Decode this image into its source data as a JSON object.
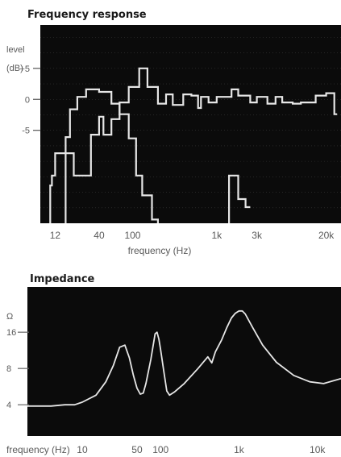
{
  "chart_data": [
    {
      "type": "line",
      "title": "Frequency response",
      "ylabel": "level\n(dB)",
      "ylabel_line1": "level",
      "ylabel_line2": "(dB)",
      "xlabel": "frequency (Hz)",
      "x_scale": "log",
      "xlim": [
        8,
        30000
      ],
      "ylim": [
        -20,
        12
      ],
      "yticks": [
        {
          "value": 5,
          "label": "+5"
        },
        {
          "value": 0,
          "label": "0"
        },
        {
          "value": -5,
          "label": "-5"
        }
      ],
      "xticks": [
        {
          "value": 12,
          "label": "12"
        },
        {
          "value": 40,
          "label": "40"
        },
        {
          "value": 100,
          "label": "100"
        },
        {
          "value": 1000,
          "label": "1k"
        },
        {
          "value": 3000,
          "label": "3k"
        },
        {
          "value": 20000,
          "label": "20k"
        }
      ],
      "grid": true,
      "series": [
        {
          "step": true,
          "color": "#e6e6e6",
          "points": [
            [
              10.5,
              -20
            ],
            [
              10.5,
              -13.9
            ],
            [
              11,
              -13.9
            ],
            [
              11,
              -12.3
            ],
            [
              12,
              -12.3
            ],
            [
              12,
              -8.7
            ],
            [
              16,
              -8.7
            ],
            [
              16,
              -6.1
            ],
            [
              18,
              -6.1
            ],
            [
              18,
              -1.6
            ],
            [
              22,
              -1.6
            ],
            [
              22,
              0.4
            ],
            [
              28,
              0.4
            ],
            [
              28,
              1.6
            ],
            [
              40,
              1.6
            ],
            [
              40,
              1.2
            ],
            [
              56,
              1.2
            ],
            [
              56,
              -0.7
            ],
            [
              70,
              -0.7
            ],
            [
              70,
              -2.4
            ],
            [
              90,
              -2.4
            ],
            [
              90,
              -6.3
            ],
            [
              110,
              -6.3
            ],
            [
              110,
              -12.3
            ],
            [
              130,
              -12.3
            ],
            [
              130,
              -15.5
            ],
            [
              170,
              -15.5
            ],
            [
              170,
              -19.4
            ],
            [
              200,
              -19.4
            ],
            [
              200,
              -20
            ]
          ]
        },
        {
          "step": true,
          "color": "#e6e6e6",
          "points": [
            [
              16,
              -20
            ],
            [
              16,
              -8.7
            ],
            [
              20,
              -8.7
            ],
            [
              20,
              -12.3
            ],
            [
              32,
              -12.3
            ],
            [
              32,
              -5.7
            ],
            [
              40,
              -5.7
            ],
            [
              40,
              -2.8
            ],
            [
              45,
              -2.8
            ],
            [
              45,
              -5.7
            ],
            [
              56,
              -5.7
            ],
            [
              56,
              -3.2
            ],
            [
              70,
              -3.2
            ],
            [
              70,
              -0.5
            ],
            [
              90,
              -0.5
            ],
            [
              90,
              2.0
            ],
            [
              120,
              2.0
            ],
            [
              120,
              5.0
            ],
            [
              150,
              5.0
            ],
            [
              150,
              2.0
            ],
            [
              200,
              2.0
            ],
            [
              200,
              -0.7
            ],
            [
              250,
              -0.7
            ],
            [
              250,
              0.8
            ],
            [
              300,
              0.8
            ],
            [
              300,
              -0.9
            ],
            [
              400,
              -0.9
            ],
            [
              400,
              0.8
            ],
            [
              500,
              0.8
            ],
            [
              500,
              0.6
            ],
            [
              600,
              0.6
            ],
            [
              600,
              -1.4
            ],
            [
              650,
              -1.4
            ],
            [
              650,
              0.4
            ],
            [
              800,
              0.4
            ],
            [
              800,
              -0.5
            ],
            [
              1000,
              -0.5
            ],
            [
              1000,
              0.4
            ],
            [
              1500,
              0.4
            ],
            [
              1500,
              1.6
            ],
            [
              1800,
              1.6
            ],
            [
              1800,
              0.6
            ],
            [
              2500,
              0.6
            ],
            [
              2500,
              -0.5
            ],
            [
              3000,
              -0.5
            ],
            [
              3000,
              0.4
            ],
            [
              4000,
              0.4
            ],
            [
              4000,
              -0.7
            ],
            [
              5000,
              -0.7
            ],
            [
              5000,
              0.4
            ],
            [
              6000,
              0.4
            ],
            [
              6000,
              -0.5
            ],
            [
              8000,
              -0.5
            ],
            [
              8000,
              -0.7
            ],
            [
              10000,
              -0.7
            ],
            [
              10000,
              -0.5
            ],
            [
              15000,
              -0.5
            ],
            [
              15000,
              0.6
            ],
            [
              20000,
              0.6
            ],
            [
              20000,
              1.0
            ],
            [
              25000,
              1.0
            ],
            [
              25000,
              -2.4
            ],
            [
              27000,
              -2.4
            ]
          ]
        },
        {
          "step": true,
          "color": "#e6e6e6",
          "points": [
            [
              1400,
              -20
            ],
            [
              1400,
              -12.3
            ],
            [
              1800,
              -12.3
            ],
            [
              1800,
              -16.1
            ],
            [
              2200,
              -16.1
            ],
            [
              2200,
              -17.4
            ],
            [
              2500,
              -17.4
            ]
          ]
        }
      ]
    },
    {
      "type": "line",
      "title": "Impedance",
      "ylabel": "Ω",
      "xlabel": "frequency (Hz)",
      "x_scale": "log",
      "xlim": [
        2,
        20000
      ],
      "y_scale": "log",
      "ylim": [
        2.2,
        38
      ],
      "yticks": [
        {
          "value": 16,
          "label": "16"
        },
        {
          "value": 8,
          "label": "8"
        },
        {
          "value": 4,
          "label": "4"
        }
      ],
      "xticks": [
        {
          "value": 10,
          "label": "10"
        },
        {
          "value": 50,
          "label": "50"
        },
        {
          "value": 100,
          "label": "100"
        },
        {
          "value": 1000,
          "label": "1k"
        },
        {
          "value": 10000,
          "label": "10k"
        }
      ],
      "grid": false,
      "series": [
        {
          "color": "#e6e6e6",
          "points": [
            [
              2,
              3.9
            ],
            [
              4,
              3.9
            ],
            [
              6,
              4.0
            ],
            [
              8,
              4.0
            ],
            [
              10,
              4.2
            ],
            [
              15,
              4.8
            ],
            [
              20,
              6.2
            ],
            [
              25,
              8.5
            ],
            [
              30,
              12.0
            ],
            [
              35,
              12.5
            ],
            [
              40,
              9.8
            ],
            [
              45,
              7.0
            ],
            [
              50,
              5.5
            ],
            [
              55,
              4.9
            ],
            [
              60,
              5.0
            ],
            [
              65,
              6.0
            ],
            [
              75,
              9.5
            ],
            [
              85,
              15.5
            ],
            [
              90,
              16.0
            ],
            [
              95,
              14.0
            ],
            [
              100,
              11.5
            ],
            [
              110,
              7.5
            ],
            [
              120,
              5.2
            ],
            [
              130,
              4.8
            ],
            [
              150,
              5.1
            ],
            [
              200,
              6.0
            ],
            [
              300,
              8.0
            ],
            [
              400,
              10.0
            ],
            [
              450,
              8.9
            ],
            [
              500,
              11.0
            ],
            [
              600,
              13.8
            ],
            [
              700,
              17.5
            ],
            [
              800,
              21.0
            ],
            [
              900,
              23.0
            ],
            [
              1000,
              24.0
            ],
            [
              1100,
              24.0
            ],
            [
              1200,
              22.7
            ],
            [
              1500,
              17.4
            ],
            [
              2000,
              12.5
            ],
            [
              3000,
              9.0
            ],
            [
              5000,
              7.0
            ],
            [
              8000,
              6.2
            ],
            [
              12000,
              6.0
            ],
            [
              20000,
              6.6
            ]
          ]
        }
      ]
    }
  ]
}
